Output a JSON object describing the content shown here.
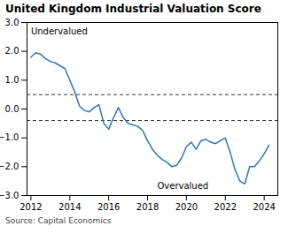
{
  "chart_data": {
    "type": "line",
    "title": "United Kingdom Industrial Valuation Score",
    "caption": "Source: Capital Economics",
    "color": "#2E75B6",
    "x": [
      2012.0,
      2012.25,
      2012.5,
      2012.75,
      2013.0,
      2013.25,
      2013.5,
      2013.75,
      2014.0,
      2014.25,
      2014.5,
      2014.75,
      2015.0,
      2015.25,
      2015.5,
      2015.75,
      2016.0,
      2016.25,
      2016.5,
      2016.75,
      2017.0,
      2017.25,
      2017.5,
      2017.75,
      2018.0,
      2018.25,
      2018.5,
      2018.75,
      2019.0,
      2019.25,
      2019.5,
      2019.75,
      2020.0,
      2020.25,
      2020.5,
      2020.75,
      2021.0,
      2021.25,
      2021.5,
      2021.75,
      2022.0,
      2022.25,
      2022.5,
      2022.75,
      2023.0,
      2023.25,
      2023.5,
      2023.75,
      2024.0,
      2024.25
    ],
    "values": [
      1.8,
      1.95,
      1.9,
      1.75,
      1.65,
      1.6,
      1.5,
      1.4,
      1.0,
      0.6,
      0.1,
      -0.05,
      -0.1,
      0.05,
      0.15,
      -0.5,
      -0.7,
      -0.3,
      0.05,
      -0.3,
      -0.5,
      -0.55,
      -0.6,
      -0.75,
      -1.1,
      -1.4,
      -1.6,
      -1.75,
      -1.85,
      -2.0,
      -1.95,
      -1.7,
      -1.3,
      -1.15,
      -1.4,
      -1.1,
      -1.05,
      -1.15,
      -1.2,
      -1.1,
      -1.0,
      -1.5,
      -2.1,
      -2.5,
      -2.6,
      -2.0,
      -2.0,
      -1.8,
      -1.55,
      -1.25
    ],
    "hlines": [
      {
        "y": 0.5,
        "line_style": "dashed",
        "color": "black"
      },
      {
        "y": -0.4,
        "line_style": "dashed",
        "color": "black"
      }
    ],
    "annotations": [
      {
        "text": "Undervalued",
        "x": 2012.0,
        "y": 2.6
      },
      {
        "text": "Overvalued",
        "x": 2018.5,
        "y": -2.78
      }
    ],
    "xlim": [
      2011.8,
      2024.7
    ],
    "xticks": [
      2012,
      2014,
      2016,
      2018,
      2020,
      2022,
      2024
    ],
    "ylim": [
      -3,
      3
    ],
    "yticks": [
      -3,
      -2,
      -1,
      0,
      1,
      2,
      3
    ],
    "grid": false
  }
}
